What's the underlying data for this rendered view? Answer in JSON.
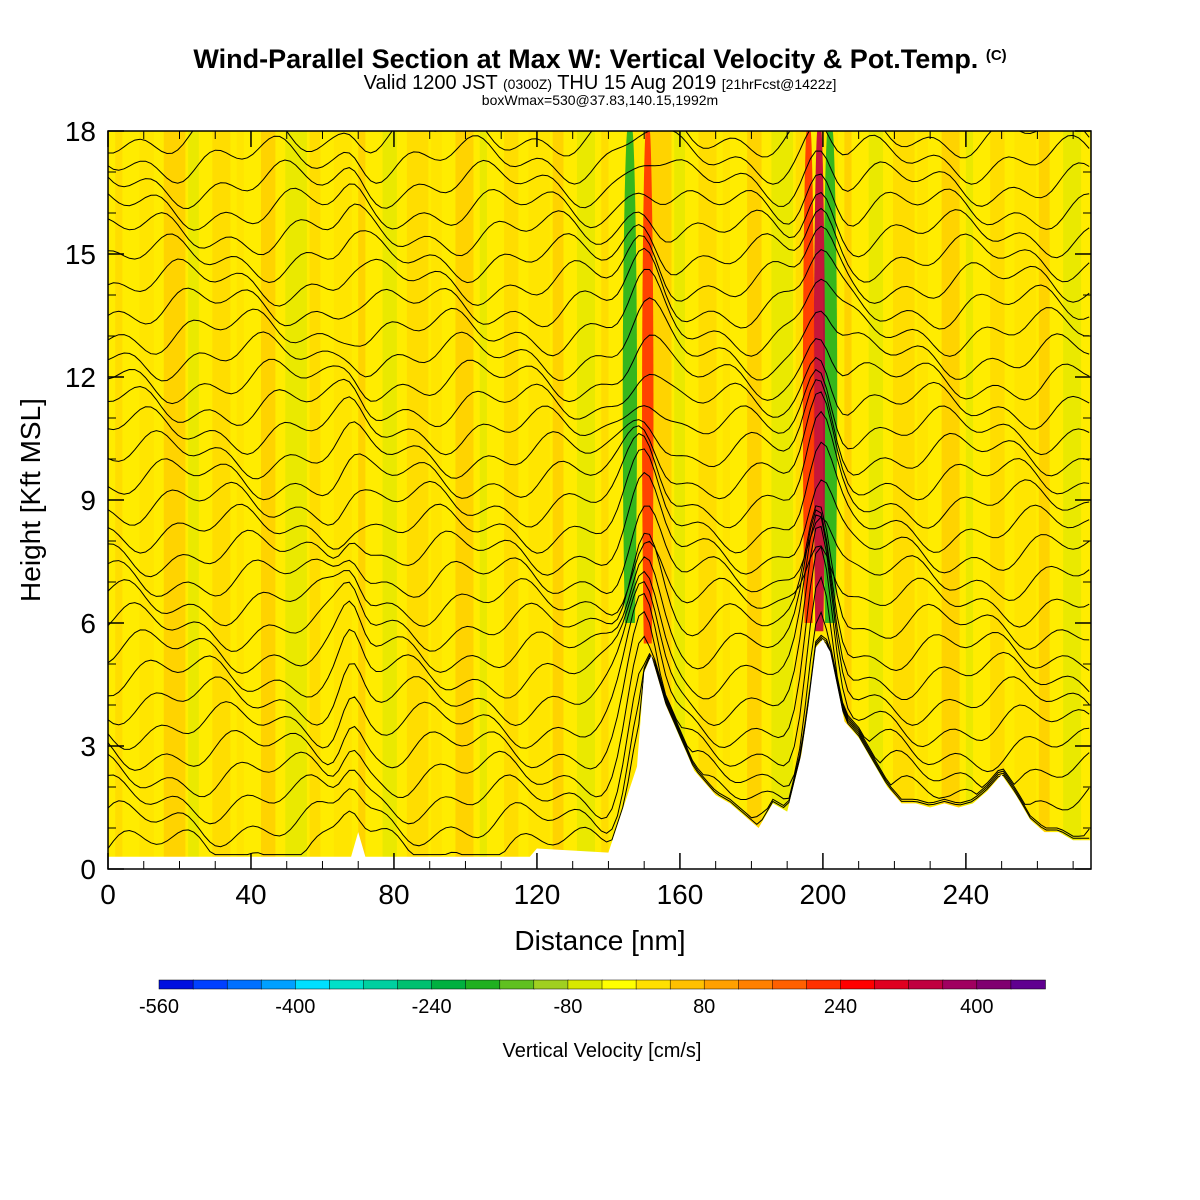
{
  "header": {
    "title_main": "Wind-Parallel Section at Max W: Vertical Velocity & Pot.Temp.",
    "title_mark": "(C)",
    "valid_pre": "Valid 1200 JST",
    "valid_z": "(0300Z)",
    "valid_date": "THU 15 Aug 2019",
    "valid_fcst": "[21hrFcst@1422z]",
    "box_info": "boxWmax=530@37.83,140.15,1992m"
  },
  "chart_data": {
    "type": "heatmap",
    "title": "Wind-Parallel Section at Max W: Vertical Velocity & Pot.Temp.",
    "xlabel": "Distance [nm]",
    "ylabel": "Height [Kft MSL]",
    "xlim": [
      0,
      275
    ],
    "ylim": [
      0,
      18
    ],
    "x_ticks": [
      0,
      40,
      80,
      120,
      160,
      200,
      240
    ],
    "y_ticks": [
      0,
      3,
      6,
      9,
      12,
      15,
      18
    ],
    "grid": false,
    "terrain_profile": {
      "x": [
        0,
        68,
        70,
        72,
        118,
        120,
        140,
        148,
        150,
        152,
        156,
        164,
        170,
        174,
        178,
        182,
        186,
        190,
        194,
        196,
        198,
        200,
        202,
        206,
        210,
        214,
        218,
        222,
        226,
        230,
        234,
        238,
        242,
        246,
        250,
        254,
        258,
        262,
        266,
        270,
        275
      ],
      "height_kft": [
        0.3,
        0.3,
        0.9,
        0.3,
        0.3,
        0.5,
        0.4,
        2.5,
        4.8,
        5.2,
        4.0,
        2.4,
        1.8,
        1.6,
        1.3,
        1.0,
        1.6,
        1.4,
        2.8,
        4.0,
        5.4,
        5.6,
        5.3,
        3.6,
        3.2,
        2.6,
        2.0,
        1.6,
        1.6,
        1.5,
        1.6,
        1.5,
        1.6,
        1.9,
        2.3,
        1.8,
        1.2,
        0.9,
        0.9,
        0.7,
        0.7
      ]
    },
    "updraft_cores": [
      {
        "x": 151,
        "height_kft": [
          5.5,
          18
        ],
        "w_cms": 280
      },
      {
        "x": 199,
        "height_kft": [
          5.8,
          18
        ],
        "w_cms": 520
      },
      {
        "x": 196,
        "height_kft": [
          6.0,
          18
        ],
        "w_cms": 380
      }
    ],
    "downdraft_cores": [
      {
        "x": 146,
        "height_kft": [
          6,
          18
        ],
        "w_cms": -200
      },
      {
        "x": 202,
        "height_kft": [
          6,
          18
        ],
        "w_cms": -180
      }
    ],
    "colorbar": {
      "label": "Vertical Velocity [cm/s]",
      "tick_labels": [
        "-560",
        "-400",
        "-240",
        "-80",
        "80",
        "240",
        "400"
      ],
      "tick_values": [
        -560,
        -400,
        -240,
        -80,
        80,
        240,
        400
      ],
      "colors": [
        "#0010e0",
        "#0040ff",
        "#0070ff",
        "#00a0ff",
        "#00e0ff",
        "#00e0c8",
        "#00d0a0",
        "#00c070",
        "#00b040",
        "#20b020",
        "#60c020",
        "#a0d020",
        "#d8e800",
        "#ffff00",
        "#ffe000",
        "#ffc000",
        "#ffa000",
        "#ff8000",
        "#ff6000",
        "#ff3000",
        "#ff0000",
        "#e00020",
        "#c00040",
        "#a00060",
        "#800070",
        "#600090"
      ]
    }
  }
}
